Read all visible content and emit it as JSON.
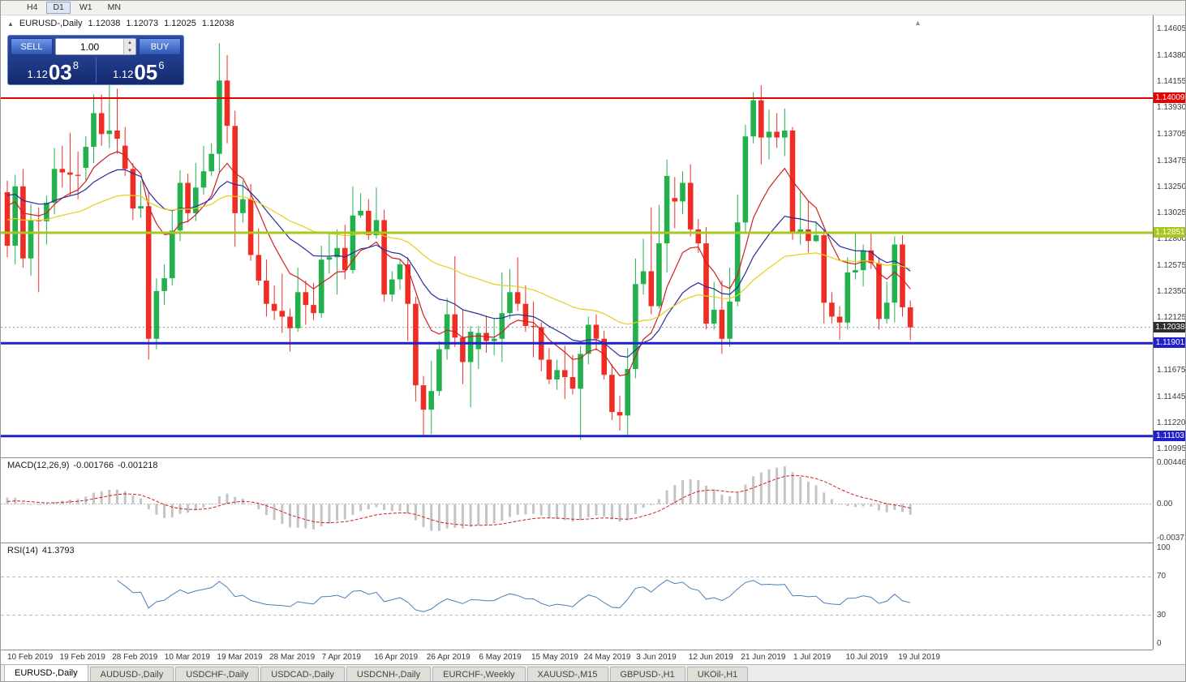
{
  "toolbar": {
    "timeframes": [
      "H4",
      "D1",
      "W1",
      "MN"
    ]
  },
  "window": {
    "tabs": [
      {
        "label": "EURUSD-,Daily",
        "active": true
      },
      {
        "label": "AUDUSD-,Daily",
        "active": false
      },
      {
        "label": "USDCHF-,Daily",
        "active": false
      },
      {
        "label": "USDCAD-,Daily",
        "active": false
      },
      {
        "label": "USDCNH-,Daily",
        "active": false
      },
      {
        "label": "EURCHF-,Weekly",
        "active": false
      },
      {
        "label": "XAUUSD-,M15",
        "active": false
      },
      {
        "label": "GBPUSD-,H1",
        "active": false
      },
      {
        "label": "UKOil-,H1",
        "active": false
      }
    ]
  },
  "chart": {
    "header": {
      "symbol": "EURUSD-,Daily",
      "open": "1.12038",
      "high": "1.12073",
      "low": "1.12025",
      "close": "1.12038"
    },
    "scale": {
      "pmin": 1.1092,
      "pmax": 1.1472
    },
    "price_axis_labels": [
      "1.14605",
      "1.14380",
      "1.14155",
      "1.13930",
      "1.13705",
      "1.13475",
      "1.13250",
      "1.13025",
      "1.12800",
      "1.12575",
      "1.12350",
      "1.12125",
      "1.11675",
      "1.11445",
      "1.11220",
      "1.10995"
    ],
    "hlines": [
      {
        "price": 1.14009,
        "label": "1.14009",
        "color": "#e60000",
        "width": 2
      },
      {
        "price": 1.12851,
        "label": "1.12851",
        "color": "#a6c71e",
        "width": 3
      },
      {
        "price": 1.11901,
        "label": "1.11901",
        "color": "#2020cc",
        "width": 3
      },
      {
        "price": 1.11103,
        "label": "1.11103",
        "color": "#2020cc",
        "width": 3
      }
    ],
    "current_price": {
      "price": 1.12038,
      "label": "1.12038",
      "box_color": "#2e2e2e"
    }
  },
  "trade_panel": {
    "sell_label": "SELL",
    "buy_label": "BUY",
    "volume": "1.00",
    "sell_price": {
      "prefix": "1.12",
      "big": "03",
      "sup": "8"
    },
    "buy_price": {
      "prefix": "1.12",
      "big": "05",
      "sup": "6"
    }
  },
  "macd": {
    "name": "MACD(12,26,9)",
    "value1": "-0.001766",
    "value2": "-0.001218",
    "params": [
      12,
      26,
      9
    ],
    "axis_labels": [
      "0.004465",
      "0.00",
      "-0.003715"
    ],
    "vmax": 0.005,
    "vmin": -0.0042
  },
  "rsi": {
    "name": "RSI(14)",
    "value": "41.3793",
    "period": 14,
    "axis_labels": [
      "100",
      "70",
      "30",
      "0"
    ],
    "levels": [
      70,
      30
    ]
  },
  "colors": {
    "bull": "#22b14c",
    "bear": "#ee2e24",
    "ma_fast": "#d02020",
    "ma_mid": "#2b2b9e",
    "ma_slow": "#e6cf1a",
    "macd_hist": "#c4c4c4",
    "macd_signal": "#cc2222",
    "rsi_line": "#4a7ebb",
    "level_dash": "#b8b8b8",
    "current_dash": "#9a9a9a"
  },
  "chart_data": {
    "type": "candlestick",
    "symbol": "EURUSD",
    "timeframe": "Daily",
    "title": "EURUSD-,Daily",
    "ylim": [
      1.10995,
      1.14605
    ],
    "dates_axis": [
      "10 Feb 2019",
      "19 Feb 2019",
      "28 Feb 2019",
      "10 Mar 2019",
      "19 Mar 2019",
      "28 Mar 2019",
      "7 Apr 2019",
      "16 Apr 2019",
      "26 Apr 2019",
      "6 May 2019",
      "15 May 2019",
      "24 May 2019",
      "3 Jun 2019",
      "12 Jun 2019",
      "21 Jun 2019",
      "1 Jul 2019",
      "10 Jul 2019",
      "19 Jul 2019"
    ],
    "ohlc_format": [
      "open",
      "high",
      "low",
      "close"
    ],
    "candles": [
      [
        1.132,
        1.133,
        1.1264,
        1.1274
      ],
      [
        1.1274,
        1.1335,
        1.1258,
        1.1325
      ],
      [
        1.1325,
        1.134,
        1.1255,
        1.1263
      ],
      [
        1.1263,
        1.131,
        1.1248,
        1.1296
      ],
      [
        1.1296,
        1.1307,
        1.1234,
        1.1295
      ],
      [
        1.1295,
        1.1317,
        1.1275,
        1.1311
      ],
      [
        1.1311,
        1.1358,
        1.1301,
        1.134
      ],
      [
        1.134,
        1.136,
        1.1324,
        1.1337
      ],
      [
        1.1337,
        1.1371,
        1.1317,
        1.1335
      ],
      [
        1.1335,
        1.1355,
        1.1314,
        1.1334
      ],
      [
        1.1341,
        1.1368,
        1.133,
        1.1359
      ],
      [
        1.1359,
        1.1404,
        1.1345,
        1.1388
      ],
      [
        1.1388,
        1.1404,
        1.136,
        1.137
      ],
      [
        1.137,
        1.142,
        1.1358,
        1.1373
      ],
      [
        1.1373,
        1.1409,
        1.1353,
        1.1366
      ],
      [
        1.136,
        1.1376,
        1.1334,
        1.134
      ],
      [
        1.134,
        1.1345,
        1.1296,
        1.1306
      ],
      [
        1.1306,
        1.133,
        1.1298,
        1.1308
      ],
      [
        1.1308,
        1.132,
        1.1176,
        1.1194
      ],
      [
        1.1194,
        1.1246,
        1.1185,
        1.1235
      ],
      [
        1.1235,
        1.1258,
        1.1223,
        1.1246
      ],
      [
        1.1246,
        1.1305,
        1.124,
        1.1287
      ],
      [
        1.1287,
        1.1339,
        1.1278,
        1.1328
      ],
      [
        1.1328,
        1.1336,
        1.1294,
        1.1302
      ],
      [
        1.1302,
        1.1345,
        1.1295,
        1.1324
      ],
      [
        1.1324,
        1.136,
        1.1318,
        1.1338
      ],
      [
        1.1338,
        1.1362,
        1.1334,
        1.1353
      ],
      [
        1.1353,
        1.1448,
        1.1336,
        1.1416
      ],
      [
        1.1416,
        1.1438,
        1.1362,
        1.1377
      ],
      [
        1.1377,
        1.139,
        1.1273,
        1.1302
      ],
      [
        1.1302,
        1.133,
        1.1294,
        1.1314
      ],
      [
        1.1314,
        1.1327,
        1.1261,
        1.1266
      ],
      [
        1.1266,
        1.1289,
        1.124,
        1.1244
      ],
      [
        1.1244,
        1.1262,
        1.1213,
        1.1224
      ],
      [
        1.1224,
        1.124,
        1.121,
        1.1218
      ],
      [
        1.1218,
        1.125,
        1.1199,
        1.1213
      ],
      [
        1.1213,
        1.122,
        1.1183,
        1.1203
      ],
      [
        1.1203,
        1.1255,
        1.12,
        1.1234
      ],
      [
        1.1234,
        1.1244,
        1.1206,
        1.1223
      ],
      [
        1.1223,
        1.1242,
        1.121,
        1.1216
      ],
      [
        1.1216,
        1.1274,
        1.1212,
        1.1262
      ],
      [
        1.1262,
        1.1285,
        1.125,
        1.1264
      ],
      [
        1.1264,
        1.1288,
        1.1232,
        1.1272
      ],
      [
        1.1272,
        1.1292,
        1.1245,
        1.1253
      ],
      [
        1.1253,
        1.1325,
        1.125,
        1.13
      ],
      [
        1.13,
        1.1319,
        1.1298,
        1.1304
      ],
      [
        1.1304,
        1.1314,
        1.1279,
        1.1283
      ],
      [
        1.1283,
        1.1324,
        1.128,
        1.1296
      ],
      [
        1.1296,
        1.1305,
        1.1226,
        1.1232
      ],
      [
        1.1232,
        1.1252,
        1.1226,
        1.1245
      ],
      [
        1.1245,
        1.1262,
        1.1236,
        1.1258
      ],
      [
        1.1258,
        1.1264,
        1.1192,
        1.1224
      ],
      [
        1.1224,
        1.123,
        1.114,
        1.1154
      ],
      [
        1.1154,
        1.1162,
        1.1111,
        1.1133
      ],
      [
        1.1133,
        1.1175,
        1.1112,
        1.1149
      ],
      [
        1.1149,
        1.1192,
        1.1145,
        1.1185
      ],
      [
        1.1185,
        1.1229,
        1.1176,
        1.1215
      ],
      [
        1.1215,
        1.1265,
        1.1187,
        1.1195
      ],
      [
        1.1195,
        1.1219,
        1.1155,
        1.1174
      ],
      [
        1.1174,
        1.1205,
        1.1135,
        1.12
      ],
      [
        1.1185,
        1.1205,
        1.1168,
        1.1199
      ],
      [
        1.1199,
        1.1214,
        1.1182,
        1.1192
      ],
      [
        1.1192,
        1.1211,
        1.118,
        1.1194
      ],
      [
        1.1194,
        1.1251,
        1.1174,
        1.1216
      ],
      [
        1.1216,
        1.1254,
        1.1211,
        1.1234
      ],
      [
        1.1234,
        1.1264,
        1.1218,
        1.1224
      ],
      [
        1.1224,
        1.124,
        1.12,
        1.1205
      ],
      [
        1.1205,
        1.1226,
        1.1178,
        1.1204
      ],
      [
        1.1204,
        1.1208,
        1.1166,
        1.1176
      ],
      [
        1.1176,
        1.1186,
        1.1155,
        1.1159
      ],
      [
        1.1159,
        1.1176,
        1.115,
        1.1167
      ],
      [
        1.1167,
        1.1188,
        1.1142,
        1.1161
      ],
      [
        1.1161,
        1.118,
        1.1146,
        1.1151
      ],
      [
        1.1151,
        1.1188,
        1.1107,
        1.1181
      ],
      [
        1.1181,
        1.1213,
        1.1172,
        1.1206
      ],
      [
        1.1206,
        1.1215,
        1.1184,
        1.1194
      ],
      [
        1.1194,
        1.1201,
        1.1159,
        1.1163
      ],
      [
        1.1163,
        1.1172,
        1.1124,
        1.1131
      ],
      [
        1.1131,
        1.1145,
        1.1115,
        1.1128
      ],
      [
        1.1128,
        1.1186,
        1.1111,
        1.1168
      ],
      [
        1.1168,
        1.1263,
        1.116,
        1.1241
      ],
      [
        1.1241,
        1.128,
        1.1232,
        1.1252
      ],
      [
        1.1252,
        1.1307,
        1.1215,
        1.1222
      ],
      [
        1.1222,
        1.1309,
        1.122,
        1.1276
      ],
      [
        1.1276,
        1.1348,
        1.1251,
        1.1334
      ],
      [
        1.1315,
        1.1333,
        1.1289,
        1.1312
      ],
      [
        1.1312,
        1.1338,
        1.1301,
        1.1328
      ],
      [
        1.1328,
        1.1344,
        1.1282,
        1.1288
      ],
      [
        1.1288,
        1.1297,
        1.1268,
        1.1276
      ],
      [
        1.1276,
        1.129,
        1.1202,
        1.1207
      ],
      [
        1.1207,
        1.1243,
        1.1202,
        1.1219
      ],
      [
        1.1219,
        1.1244,
        1.1181,
        1.1194
      ],
      [
        1.1194,
        1.1255,
        1.1187,
        1.1226
      ],
      [
        1.1226,
        1.1318,
        1.1222,
        1.1294
      ],
      [
        1.1294,
        1.1378,
        1.1285,
        1.1368
      ],
      [
        1.1368,
        1.1406,
        1.1362,
        1.1399
      ],
      [
        1.1399,
        1.1412,
        1.1344,
        1.1367
      ],
      [
        1.1367,
        1.1391,
        1.1348,
        1.1372
      ],
      [
        1.1372,
        1.1388,
        1.1358,
        1.1367
      ],
      [
        1.1367,
        1.1392,
        1.1351,
        1.1373
      ],
      [
        1.1373,
        1.1376,
        1.1279,
        1.1285
      ],
      [
        1.1285,
        1.1322,
        1.1275,
        1.1288
      ],
      [
        1.1288,
        1.1312,
        1.1268,
        1.1278
      ],
      [
        1.1278,
        1.1295,
        1.1277,
        1.1283
      ],
      [
        1.1283,
        1.1288,
        1.1207,
        1.1225
      ],
      [
        1.1225,
        1.1234,
        1.1207,
        1.1213
      ],
      [
        1.1213,
        1.1222,
        1.1193,
        1.1208
      ],
      [
        1.1208,
        1.1264,
        1.1202,
        1.1251
      ],
      [
        1.1251,
        1.1286,
        1.1245,
        1.1253
      ],
      [
        1.1253,
        1.1275,
        1.1239,
        1.127
      ],
      [
        1.127,
        1.1284,
        1.1254,
        1.1259
      ],
      [
        1.1259,
        1.1264,
        1.1202,
        1.1211
      ],
      [
        1.1211,
        1.1243,
        1.1207,
        1.1225
      ],
      [
        1.1225,
        1.1282,
        1.1208,
        1.1275
      ],
      [
        1.1275,
        1.1283,
        1.1213,
        1.1221
      ],
      [
        1.1221,
        1.1227,
        1.1193,
        1.12038
      ]
    ],
    "moving_averages": [
      {
        "type": "ema",
        "period": 9,
        "color_key": "ma_fast"
      },
      {
        "type": "ema",
        "period": 20,
        "color_key": "ma_mid"
      },
      {
        "type": "ema",
        "period": 45,
        "color_key": "ma_slow"
      }
    ]
  }
}
